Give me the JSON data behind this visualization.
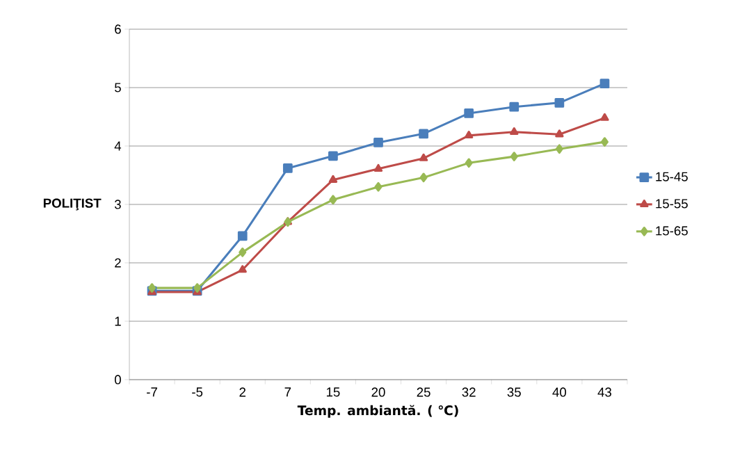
{
  "chart_data": {
    "type": "line",
    "xlabel": "Temp. ambiantă. ( ℃)",
    "ylabel": "POLIŢIST",
    "categories": [
      "-7",
      "-5",
      "2",
      "7",
      "15",
      "20",
      "25",
      "32",
      "35",
      "40",
      "43"
    ],
    "series": [
      {
        "name": "15-45",
        "color": "#4a7ebb",
        "marker": "square",
        "values": [
          1.52,
          1.52,
          2.46,
          3.62,
          3.83,
          4.06,
          4.21,
          4.56,
          4.67,
          4.74,
          5.07
        ]
      },
      {
        "name": "15-55",
        "color": "#be4b48",
        "marker": "triangle",
        "values": [
          1.5,
          1.5,
          1.88,
          2.7,
          3.42,
          3.61,
          3.79,
          4.18,
          4.24,
          4.2,
          4.48
        ]
      },
      {
        "name": "15-65",
        "color": "#98b954",
        "marker": "diamond",
        "values": [
          1.57,
          1.57,
          2.18,
          2.7,
          3.08,
          3.3,
          3.46,
          3.71,
          3.82,
          3.95,
          4.07
        ]
      }
    ],
    "ylim": [
      0,
      6
    ],
    "yticks": [
      0,
      1,
      2,
      3,
      4,
      5,
      6
    ],
    "grid": "y",
    "legend": "right",
    "line_style": "solid"
  }
}
